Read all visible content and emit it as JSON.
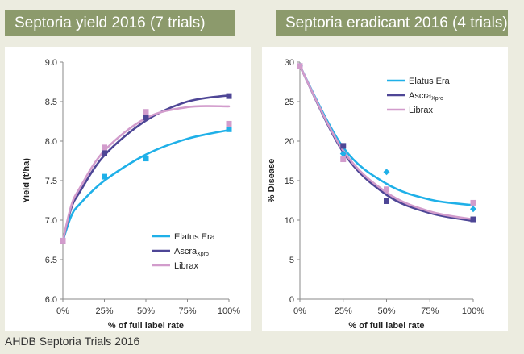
{
  "titles": {
    "left": "Septoria yield 2016 (7 trials)",
    "right": "Septoria eradicant 2016 (4 trials)"
  },
  "source": "AHDB Septoria Trials 2016",
  "colors": {
    "background": "#ecece0",
    "banner": "#8c9a6c",
    "elatus_era": "#1fb0e8",
    "ascra_xpro": "#4e4696",
    "librax": "#d29ccc"
  },
  "chart_data": [
    {
      "type": "scatter",
      "title": "Septoria yield 2016 (7 trials)",
      "xlabel": "% of full label rate",
      "ylabel": "Yield (t/ha)",
      "x_ticks": [
        "0%",
        "25%",
        "50%",
        "75%",
        "100%"
      ],
      "y_ticks": [
        "6.0",
        "6.5",
        "7.0",
        "7.5",
        "8.0",
        "8.5",
        "9.0"
      ],
      "xlim": [
        0,
        100
      ],
      "ylim": [
        6.0,
        9.0
      ],
      "legend_position": "bottom-right",
      "series": [
        {
          "name": "Elatus Era",
          "sub": "",
          "color": "#1fb0e8",
          "marker": "square",
          "x": [
            0,
            25,
            50,
            100
          ],
          "y": [
            6.74,
            7.55,
            7.78,
            8.15
          ]
        },
        {
          "name": "Ascra",
          "sub": "Xpro",
          "color": "#4e4696",
          "marker": "square",
          "x": [
            0,
            25,
            50,
            100
          ],
          "y": [
            6.74,
            7.85,
            8.3,
            8.57
          ]
        },
        {
          "name": "Librax",
          "sub": "",
          "color": "#d29ccc",
          "marker": "square",
          "x": [
            0,
            25,
            50,
            100
          ],
          "y": [
            6.74,
            7.92,
            8.37,
            8.22
          ]
        }
      ],
      "trendlines": [
        {
          "series": "Elatus Era",
          "type": "log-shaped",
          "y_at_x": [
            [
              0,
              6.74
            ],
            [
              5,
              7.05
            ],
            [
              10,
              7.2
            ],
            [
              25,
              7.5
            ],
            [
              50,
              7.83
            ],
            [
              75,
              8.03
            ],
            [
              100,
              8.14
            ]
          ]
        },
        {
          "series": "Ascra Xpro",
          "type": "polynomial",
          "y_at_x": [
            [
              0,
              6.74
            ],
            [
              5,
              7.15
            ],
            [
              10,
              7.35
            ],
            [
              25,
              7.82
            ],
            [
              50,
              8.26
            ],
            [
              75,
              8.5
            ],
            [
              100,
              8.58
            ]
          ]
        },
        {
          "series": "Librax",
          "type": "polynomial",
          "y_at_x": [
            [
              0,
              6.74
            ],
            [
              5,
              7.18
            ],
            [
              10,
              7.4
            ],
            [
              25,
              7.88
            ],
            [
              50,
              8.29
            ],
            [
              75,
              8.43
            ],
            [
              100,
              8.44
            ]
          ]
        }
      ]
    },
    {
      "type": "scatter",
      "title": "Septoria eradicant 2016 (4 trials)",
      "xlabel": "% of full label rate",
      "ylabel": "% Disease",
      "x_ticks": [
        "0%",
        "25%",
        "50%",
        "75%",
        "100%"
      ],
      "y_ticks": [
        "0",
        "5",
        "10",
        "15",
        "20",
        "25",
        "30"
      ],
      "xlim": [
        0,
        100
      ],
      "ylim": [
        0,
        30
      ],
      "legend_position": "top-right",
      "series": [
        {
          "name": "Elatus Era",
          "sub": "",
          "color": "#1fb0e8",
          "marker": "diamond",
          "x": [
            0,
            25,
            50,
            100
          ],
          "y": [
            29.5,
            18.4,
            16.1,
            11.4
          ]
        },
        {
          "name": "Ascra",
          "sub": "Xpro",
          "color": "#4e4696",
          "marker": "square",
          "x": [
            0,
            25,
            50,
            100
          ],
          "y": [
            29.5,
            19.4,
            12.4,
            10.1
          ]
        },
        {
          "name": "Librax",
          "sub": "",
          "color": "#d29ccc",
          "marker": "square",
          "x": [
            0,
            25,
            50,
            100
          ],
          "y": [
            29.5,
            17.7,
            13.9,
            12.2
          ]
        }
      ],
      "trendlines": [
        {
          "series": "Elatus Era",
          "type": "exponential decay",
          "y_at_x": [
            [
              0,
              29.5
            ],
            [
              25,
              19.2
            ],
            [
              50,
              14.6
            ],
            [
              75,
              12.6
            ],
            [
              100,
              11.9
            ]
          ]
        },
        {
          "series": "Ascra Xpro",
          "type": "exponential decay",
          "y_at_x": [
            [
              0,
              29.5
            ],
            [
              25,
              18.6
            ],
            [
              50,
              13.2
            ],
            [
              75,
              10.9
            ],
            [
              100,
              9.9
            ]
          ]
        },
        {
          "series": "Librax",
          "type": "exponential decay",
          "y_at_x": [
            [
              0,
              29.5
            ],
            [
              25,
              18.8
            ],
            [
              50,
              13.5
            ],
            [
              75,
              11.1
            ],
            [
              100,
              10.1
            ]
          ]
        }
      ]
    }
  ]
}
